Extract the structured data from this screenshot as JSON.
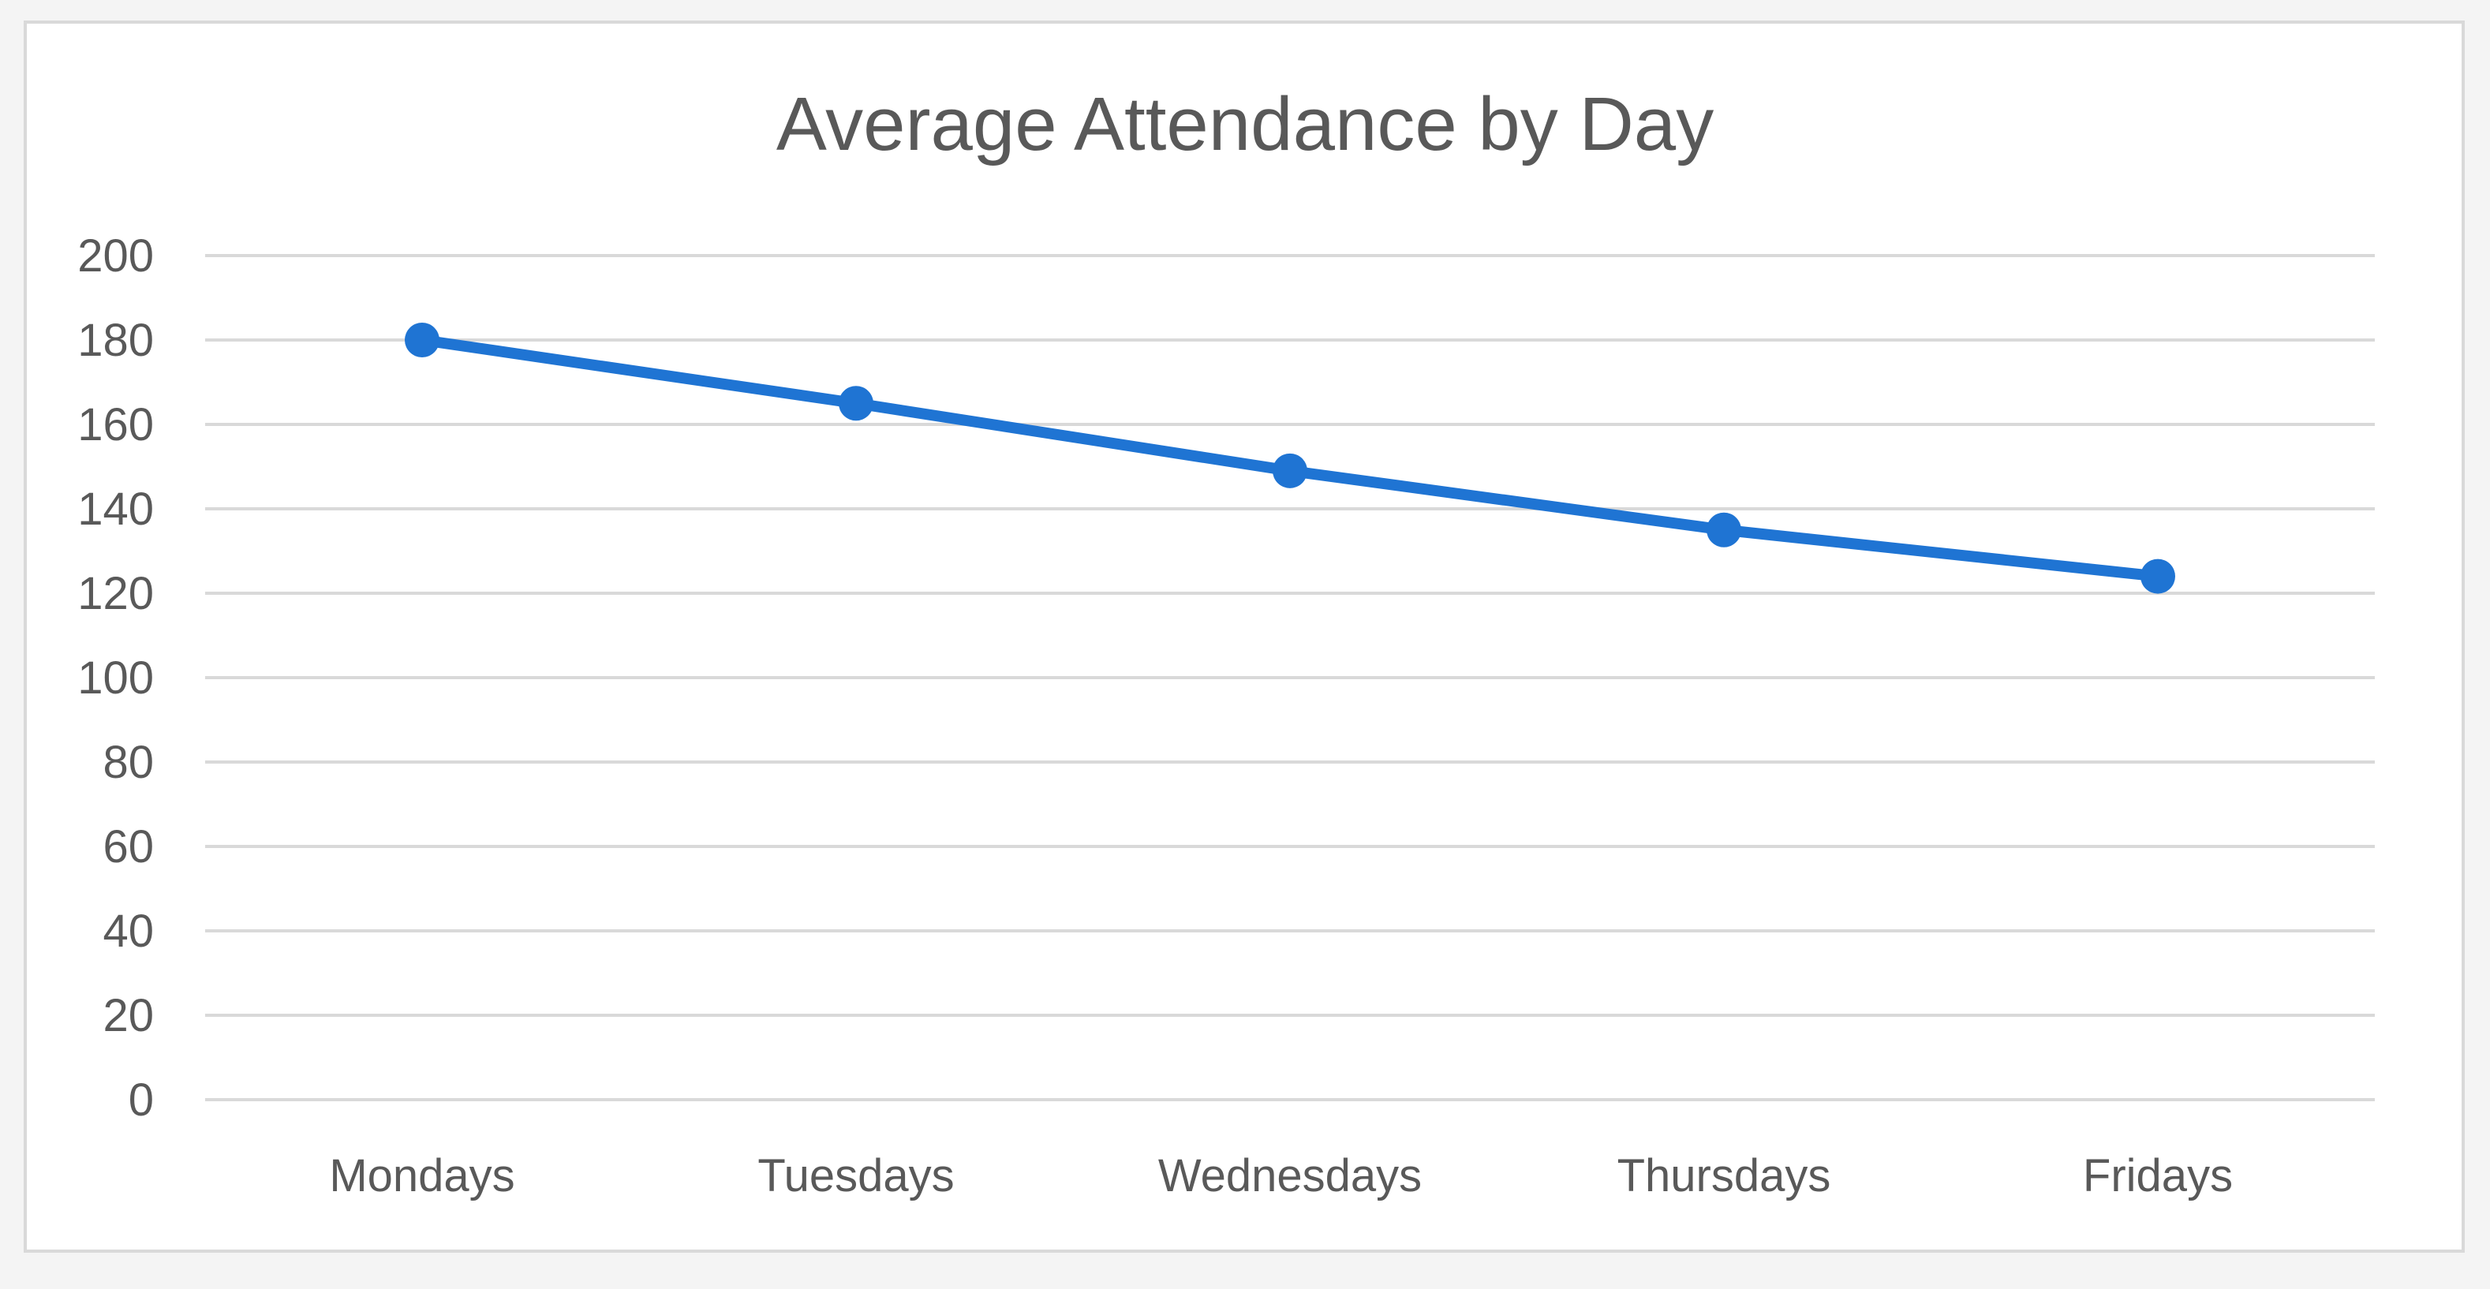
{
  "chart_data": {
    "type": "line",
    "title": "Average Attendance by Day",
    "xlabel": "",
    "ylabel": "",
    "categories": [
      "Mondays",
      "Tuesdays",
      "Wednesdays",
      "Thursdays",
      "Fridays"
    ],
    "series": [
      {
        "name": "Average Attendance",
        "values": [
          180,
          165,
          149,
          135,
          124
        ],
        "color": "#1f74d3"
      }
    ],
    "ylim": [
      0,
      200
    ],
    "yticks": [
      0,
      20,
      40,
      60,
      80,
      100,
      120,
      140,
      160,
      180,
      200
    ],
    "grid": true,
    "legend": "none"
  }
}
